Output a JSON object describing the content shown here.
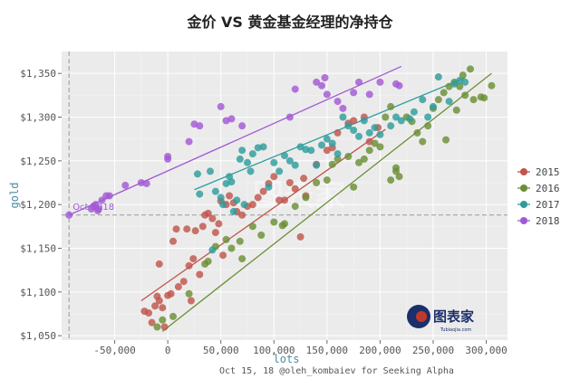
{
  "chart_data": {
    "type": "scatter",
    "title": "金价 VS 黄金基金经理的净持仓",
    "xlabel": "lots",
    "ylabel": "gold",
    "xlim": [
      -100000,
      320000
    ],
    "ylim": [
      1045,
      1375
    ],
    "x_ticks": [
      -50000,
      0,
      50000,
      100000,
      150000,
      200000,
      250000,
      300000
    ],
    "x_tick_labels": [
      "-50,000",
      "0",
      "50,000",
      "100,000",
      "150,000",
      "200,000",
      "250,000",
      "300,000"
    ],
    "y_ticks": [
      1050,
      1100,
      1150,
      1200,
      1250,
      1300,
      1350
    ],
    "y_tick_labels": [
      "$1,050",
      "$1,100",
      "$1,150",
      "$1,200",
      "$1,250",
      "$1,300",
      "$1,350"
    ],
    "grid": true,
    "legend_position": "right",
    "reference_lines": {
      "x": -93000,
      "y": 1188
    },
    "annotation": {
      "text": "Oct 2018",
      "x": -93000,
      "y": 1188
    },
    "caption": "Oct 15, 18    @oleh_kombaiev for Seeking Alpha",
    "watermark": "图表家",
    "logo": {
      "text": "图表家",
      "subtext": "Tubiaojia.com"
    },
    "series": [
      {
        "name": "2015",
        "color": "#c0554a",
        "trend": [
          [
            -25000,
            1090
          ],
          [
            205000,
            1286
          ]
        ],
        "points": [
          [
            -22000,
            1078
          ],
          [
            -18000,
            1076
          ],
          [
            -15000,
            1065
          ],
          [
            -12000,
            1084
          ],
          [
            -10000,
            1095
          ],
          [
            -8000,
            1132
          ],
          [
            -8000,
            1090
          ],
          [
            -5000,
            1082
          ],
          [
            -3000,
            1060
          ],
          [
            0,
            1096
          ],
          [
            3000,
            1098
          ],
          [
            5000,
            1158
          ],
          [
            8000,
            1172
          ],
          [
            10000,
            1106
          ],
          [
            15000,
            1112
          ],
          [
            18000,
            1172
          ],
          [
            20000,
            1130
          ],
          [
            22000,
            1090
          ],
          [
            24000,
            1138
          ],
          [
            26000,
            1170
          ],
          [
            30000,
            1120
          ],
          [
            33000,
            1175
          ],
          [
            35000,
            1188
          ],
          [
            38000,
            1190
          ],
          [
            42000,
            1184
          ],
          [
            45000,
            1168
          ],
          [
            48000,
            1178
          ],
          [
            50000,
            1204
          ],
          [
            52000,
            1142
          ],
          [
            55000,
            1200
          ],
          [
            58000,
            1210
          ],
          [
            62000,
            1202
          ],
          [
            65000,
            1192
          ],
          [
            70000,
            1188
          ],
          [
            75000,
            1198
          ],
          [
            80000,
            1200
          ],
          [
            85000,
            1208
          ],
          [
            90000,
            1215
          ],
          [
            95000,
            1224
          ],
          [
            100000,
            1232
          ],
          [
            105000,
            1205
          ],
          [
            110000,
            1205
          ],
          [
            115000,
            1225
          ],
          [
            120000,
            1218
          ],
          [
            125000,
            1163
          ],
          [
            128000,
            1230
          ],
          [
            130000,
            1210
          ],
          [
            140000,
            1246
          ],
          [
            150000,
            1262
          ],
          [
            155000,
            1265
          ],
          [
            160000,
            1282
          ],
          [
            170000,
            1293
          ],
          [
            175000,
            1296
          ],
          [
            185000,
            1300
          ],
          [
            190000,
            1272
          ],
          [
            198000,
            1288
          ]
        ]
      },
      {
        "name": "2016",
        "color": "#6a8f35",
        "trend": [
          [
            -5000,
            1055
          ],
          [
            305000,
            1350
          ]
        ],
        "points": [
          [
            -10000,
            1060
          ],
          [
            -5000,
            1068
          ],
          [
            5000,
            1072
          ],
          [
            20000,
            1098
          ],
          [
            35000,
            1132
          ],
          [
            38000,
            1135
          ],
          [
            45000,
            1152
          ],
          [
            55000,
            1160
          ],
          [
            60000,
            1150
          ],
          [
            68000,
            1158
          ],
          [
            70000,
            1138
          ],
          [
            80000,
            1175
          ],
          [
            88000,
            1165
          ],
          [
            100000,
            1180
          ],
          [
            108000,
            1176
          ],
          [
            110000,
            1178
          ],
          [
            120000,
            1198
          ],
          [
            130000,
            1208
          ],
          [
            140000,
            1225
          ],
          [
            150000,
            1228
          ],
          [
            155000,
            1246
          ],
          [
            160000,
            1252
          ],
          [
            170000,
            1255
          ],
          [
            175000,
            1220
          ],
          [
            180000,
            1248
          ],
          [
            185000,
            1252
          ],
          [
            190000,
            1262
          ],
          [
            195000,
            1270
          ],
          [
            200000,
            1266
          ],
          [
            205000,
            1300
          ],
          [
            210000,
            1312
          ],
          [
            210000,
            1228
          ],
          [
            215000,
            1238
          ],
          [
            215000,
            1242
          ],
          [
            218000,
            1232
          ],
          [
            225000,
            1300
          ],
          [
            230000,
            1295
          ],
          [
            235000,
            1282
          ],
          [
            240000,
            1272
          ],
          [
            245000,
            1290
          ],
          [
            250000,
            1310
          ],
          [
            255000,
            1320
          ],
          [
            260000,
            1328
          ],
          [
            262000,
            1274
          ],
          [
            265000,
            1335
          ],
          [
            270000,
            1340
          ],
          [
            272000,
            1308
          ],
          [
            275000,
            1335
          ],
          [
            278000,
            1348
          ],
          [
            280000,
            1325
          ],
          [
            285000,
            1355
          ],
          [
            288000,
            1320
          ],
          [
            295000,
            1323
          ],
          [
            298000,
            1322
          ],
          [
            305000,
            1336
          ]
        ]
      },
      {
        "name": "2017",
        "color": "#2e9c9c",
        "trend": [
          [
            25000,
            1217
          ],
          [
            280000,
            1345
          ]
        ],
        "points": [
          [
            28000,
            1235
          ],
          [
            30000,
            1212
          ],
          [
            40000,
            1238
          ],
          [
            42000,
            1148
          ],
          [
            45000,
            1215
          ],
          [
            50000,
            1208
          ],
          [
            52000,
            1200
          ],
          [
            55000,
            1224
          ],
          [
            58000,
            1232
          ],
          [
            60000,
            1226
          ],
          [
            62000,
            1192
          ],
          [
            65000,
            1205
          ],
          [
            68000,
            1252
          ],
          [
            70000,
            1262
          ],
          [
            72000,
            1200
          ],
          [
            75000,
            1248
          ],
          [
            78000,
            1238
          ],
          [
            80000,
            1258
          ],
          [
            85000,
            1265
          ],
          [
            90000,
            1266
          ],
          [
            95000,
            1220
          ],
          [
            100000,
            1248
          ],
          [
            105000,
            1238
          ],
          [
            110000,
            1256
          ],
          [
            115000,
            1250
          ],
          [
            120000,
            1245
          ],
          [
            125000,
            1266
          ],
          [
            130000,
            1263
          ],
          [
            135000,
            1262
          ],
          [
            140000,
            1245
          ],
          [
            145000,
            1268
          ],
          [
            150000,
            1275
          ],
          [
            155000,
            1270
          ],
          [
            160000,
            1258
          ],
          [
            165000,
            1300
          ],
          [
            170000,
            1290
          ],
          [
            175000,
            1285
          ],
          [
            180000,
            1278
          ],
          [
            185000,
            1296
          ],
          [
            190000,
            1282
          ],
          [
            195000,
            1288
          ],
          [
            200000,
            1280
          ],
          [
            210000,
            1290
          ],
          [
            215000,
            1300
          ],
          [
            220000,
            1296
          ],
          [
            228000,
            1298
          ],
          [
            232000,
            1306
          ],
          [
            240000,
            1320
          ],
          [
            245000,
            1300
          ],
          [
            250000,
            1312
          ],
          [
            255000,
            1346
          ],
          [
            265000,
            1318
          ],
          [
            270000,
            1338
          ],
          [
            275000,
            1342
          ],
          [
            280000,
            1340
          ]
        ]
      },
      {
        "name": "2018",
        "color": "#a259d4",
        "trend": [
          [
            -93000,
            1188
          ],
          [
            220000,
            1358
          ]
        ],
        "points": [
          [
            -93000,
            1188
          ],
          [
            -72000,
            1195
          ],
          [
            -70000,
            1198
          ],
          [
            -68000,
            1200
          ],
          [
            -66000,
            1193
          ],
          [
            -65000,
            1195
          ],
          [
            -62000,
            1205
          ],
          [
            -58000,
            1210
          ],
          [
            -55000,
            1210
          ],
          [
            -40000,
            1222
          ],
          [
            -25000,
            1225
          ],
          [
            -20000,
            1224
          ],
          [
            0,
            1252
          ],
          [
            0,
            1255
          ],
          [
            20000,
            1272
          ],
          [
            25000,
            1292
          ],
          [
            30000,
            1290
          ],
          [
            50000,
            1312
          ],
          [
            55000,
            1296
          ],
          [
            60000,
            1298
          ],
          [
            70000,
            1290
          ],
          [
            115000,
            1300
          ],
          [
            120000,
            1332
          ],
          [
            140000,
            1340
          ],
          [
            145000,
            1336
          ],
          [
            148000,
            1345
          ],
          [
            150000,
            1326
          ],
          [
            160000,
            1318
          ],
          [
            165000,
            1310
          ],
          [
            175000,
            1328
          ],
          [
            180000,
            1340
          ],
          [
            190000,
            1326
          ],
          [
            200000,
            1340
          ],
          [
            215000,
            1338
          ],
          [
            218000,
            1336
          ]
        ]
      }
    ]
  }
}
